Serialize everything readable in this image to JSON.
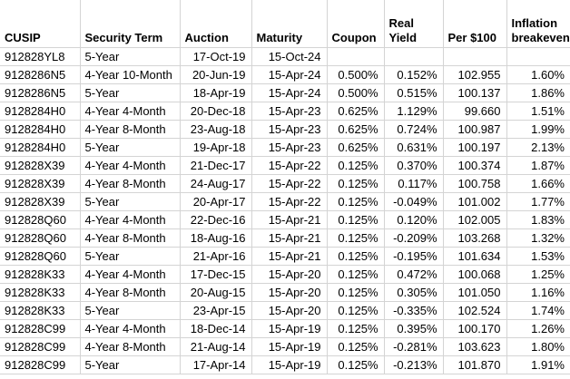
{
  "colors": {
    "gridline": "#d4d4d4",
    "text": "#000000",
    "background": "#ffffff"
  },
  "table": {
    "columns": [
      {
        "key": "cusip",
        "label": "CUSIP"
      },
      {
        "key": "security-term",
        "label": "Security Term"
      },
      {
        "key": "auction",
        "label": "Auction"
      },
      {
        "key": "maturity",
        "label": "Maturity"
      },
      {
        "key": "coupon",
        "label": "Coupon"
      },
      {
        "key": "real-yield",
        "label": "Real Yield"
      },
      {
        "key": "per-100",
        "label": "Per $100"
      },
      {
        "key": "inflation-breakeven",
        "label": "Inflation breakeven"
      }
    ],
    "rows": [
      [
        "912828YL8",
        "5-Year",
        "17-Oct-19",
        "15-Oct-24",
        "",
        "",
        "",
        ""
      ],
      [
        "9128286N5",
        "4-Year 10-Month",
        "20-Jun-19",
        "15-Apr-24",
        "0.500%",
        "0.152%",
        "102.955",
        "1.60%"
      ],
      [
        "9128286N5",
        "5-Year",
        "18-Apr-19",
        "15-Apr-24",
        "0.500%",
        "0.515%",
        "100.137",
        "1.86%"
      ],
      [
        "9128284H0",
        "4-Year 4-Month",
        "20-Dec-18",
        "15-Apr-23",
        "0.625%",
        "1.129%",
        "99.660",
        "1.51%"
      ],
      [
        "9128284H0",
        "4-Year 8-Month",
        "23-Aug-18",
        "15-Apr-23",
        "0.625%",
        "0.724%",
        "100.987",
        "1.99%"
      ],
      [
        "9128284H0",
        "5-Year",
        "19-Apr-18",
        "15-Apr-23",
        "0.625%",
        "0.631%",
        "100.197",
        "2.13%"
      ],
      [
        "912828X39",
        "4-Year 4-Month",
        "21-Dec-17",
        "15-Apr-22",
        "0.125%",
        "0.370%",
        "100.374",
        "1.87%"
      ],
      [
        "912828X39",
        "4-Year 8-Month",
        "24-Aug-17",
        "15-Apr-22",
        "0.125%",
        "0.117%",
        "100.758",
        "1.66%"
      ],
      [
        "912828X39",
        "5-Year",
        "20-Apr-17",
        "15-Apr-22",
        "0.125%",
        "-0.049%",
        "101.002",
        "1.77%"
      ],
      [
        "912828Q60",
        "4-Year 4-Month",
        "22-Dec-16",
        "15-Apr-21",
        "0.125%",
        "0.120%",
        "102.005",
        "1.83%"
      ],
      [
        "912828Q60",
        "4-Year 8-Month",
        "18-Aug-16",
        "15-Apr-21",
        "0.125%",
        "-0.209%",
        "103.268",
        "1.32%"
      ],
      [
        "912828Q60",
        "5-Year",
        "21-Apr-16",
        "15-Apr-21",
        "0.125%",
        "-0.195%",
        "101.634",
        "1.53%"
      ],
      [
        "912828K33",
        "4-Year 4-Month",
        "17-Dec-15",
        "15-Apr-20",
        "0.125%",
        "0.472%",
        "100.068",
        "1.25%"
      ],
      [
        "912828K33",
        "4-Year 8-Month",
        "20-Aug-15",
        "15-Apr-20",
        "0.125%",
        "0.305%",
        "101.050",
        "1.16%"
      ],
      [
        "912828K33",
        "5-Year",
        "23-Apr-15",
        "15-Apr-20",
        "0.125%",
        "-0.335%",
        "102.524",
        "1.74%"
      ],
      [
        "912828C99",
        "4-Year 4-Month",
        "18-Dec-14",
        "15-Apr-19",
        "0.125%",
        "0.395%",
        "100.170",
        "1.26%"
      ],
      [
        "912828C99",
        "4-Year 8-Month",
        "21-Aug-14",
        "15-Apr-19",
        "0.125%",
        "-0.281%",
        "103.623",
        "1.80%"
      ],
      [
        "912828C99",
        "5-Year",
        "17-Apr-14",
        "15-Apr-19",
        "0.125%",
        "-0.213%",
        "101.870",
        "1.91%"
      ]
    ]
  }
}
